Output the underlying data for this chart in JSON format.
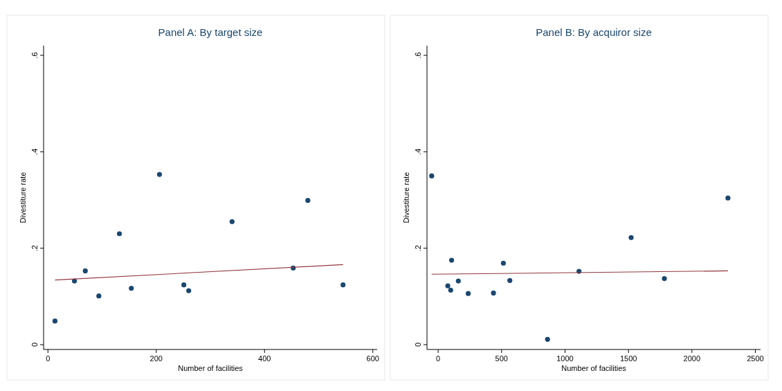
{
  "chart_data": [
    {
      "type": "scatter",
      "title": "Panel A: By target size",
      "xlabel": "Number of facilities",
      "ylabel": "Divestiture rate",
      "xlim": [
        -8,
        608
      ],
      "ylim": [
        -0.01,
        0.62
      ],
      "xticks": [
        0,
        200,
        400,
        600
      ],
      "yticks": [
        {
          "value": 0,
          "label": "0"
        },
        {
          "value": 0.2,
          "label": ".2"
        },
        {
          "value": 0.4,
          "label": ".4"
        },
        {
          "value": 0.6,
          "label": ".6"
        }
      ],
      "grid": false,
      "series": [
        {
          "marker": "circle",
          "color": "#1a476f",
          "x": [
            13,
            49,
            69,
            94,
            132,
            154,
            206,
            251,
            260,
            340,
            453,
            480,
            545
          ],
          "values": [
            0.049,
            0.132,
            0.153,
            0.101,
            0.23,
            0.117,
            0.353,
            0.124,
            0.112,
            0.255,
            0.159,
            0.299,
            0.124
          ]
        },
        {
          "type": "line",
          "marker": "none",
          "color": "#90353b",
          "x": [
            13,
            545
          ],
          "values": [
            0.134,
            0.166
          ]
        }
      ]
    },
    {
      "type": "scatter",
      "title": "Panel B: By acquiror size",
      "xlabel": "Number of facilities",
      "ylabel": "Divestiture rate",
      "xlim": [
        -88,
        2541
      ],
      "ylim": [
        -0.01,
        0.62
      ],
      "xticks": [
        0,
        500,
        1000,
        1500,
        2000,
        2500
      ],
      "yticks": [
        {
          "value": 0,
          "label": "0"
        },
        {
          "value": 0.2,
          "label": ".2"
        },
        {
          "value": 0.4,
          "label": ".4"
        },
        {
          "value": 0.6,
          "label": ".6"
        }
      ],
      "grid": false,
      "series": [
        {
          "marker": "circle",
          "color": "#1a476f",
          "x": [
            -51,
            76,
            99,
            106,
            159,
            237,
            436,
            514,
            565,
            862,
            1110,
            1521,
            1783,
            2284
          ],
          "values": [
            0.35,
            0.122,
            0.113,
            0.175,
            0.132,
            0.106,
            0.107,
            0.169,
            0.133,
            0.011,
            0.152,
            0.222,
            0.137,
            0.304
          ]
        },
        {
          "type": "line",
          "marker": "none",
          "color": "#90353b",
          "x": [
            -51,
            2284
          ],
          "values": [
            0.146,
            0.153
          ]
        }
      ]
    }
  ]
}
